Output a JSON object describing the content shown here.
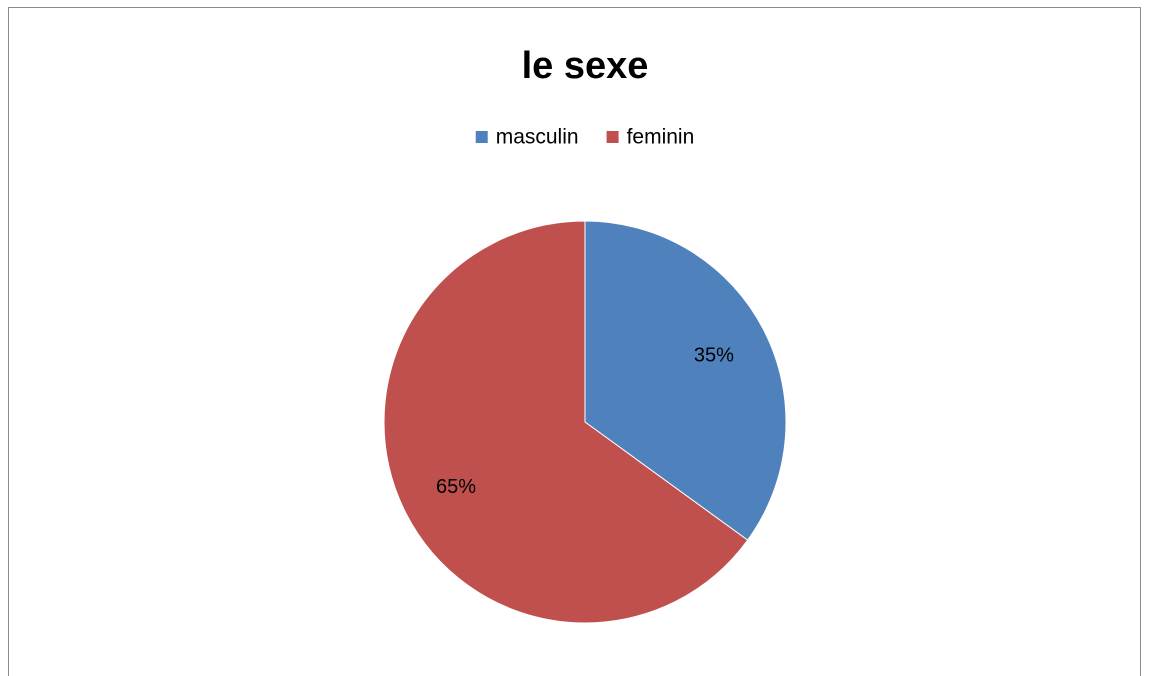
{
  "chart_data": {
    "type": "pie",
    "title": "le sexe",
    "categories": [
      "masculin",
      "feminin"
    ],
    "values": [
      35,
      65
    ],
    "value_labels": [
      "35%",
      "65%"
    ],
    "colors": [
      "#4f81bd",
      "#c0504d"
    ],
    "legend": "top"
  }
}
